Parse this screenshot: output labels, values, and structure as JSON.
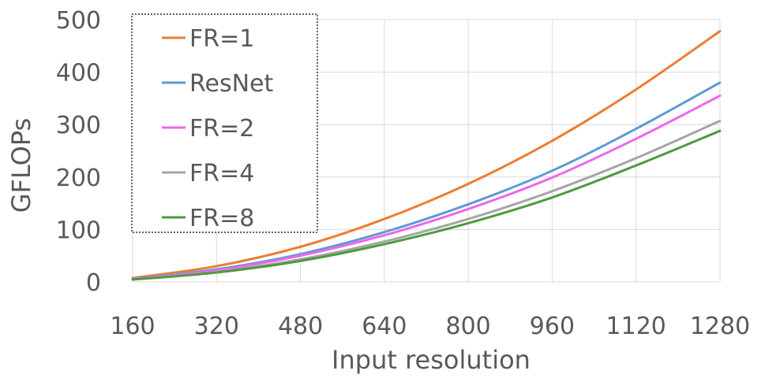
{
  "chart_data": {
    "type": "line",
    "title": "",
    "xlabel": "Input resolution",
    "ylabel": "GFLOPs",
    "x": [
      160,
      320,
      480,
      640,
      800,
      960,
      1120,
      1280
    ],
    "xticks": [
      "160",
      "320",
      "480",
      "640",
      "800",
      "960",
      "1120",
      "1280"
    ],
    "ylim": [
      0,
      500
    ],
    "yticks": [
      "0",
      "100",
      "200",
      "300",
      "400",
      "500"
    ],
    "grid": true,
    "legend_position": "top-left",
    "series": [
      {
        "name": "FR=1",
        "color": "#ED7D31",
        "values": [
          7.5,
          30,
          67,
          120,
          187,
          269,
          367,
          478
        ]
      },
      {
        "name": "ResNet",
        "color": "#5B9BD5",
        "values": [
          6,
          24,
          53,
          95,
          148,
          212,
          292,
          380
        ]
      },
      {
        "name": "FR=2",
        "color": "#EE66EE",
        "values": [
          5.5,
          22,
          50,
          89,
          139,
          199,
          273,
          355
        ]
      },
      {
        "name": "FR=4",
        "color": "#A5A5A5",
        "values": [
          4.8,
          19,
          43,
          77,
          120,
          173,
          236,
          307
        ]
      },
      {
        "name": "FR=8",
        "color": "#4E9A3E",
        "values": [
          4.5,
          18,
          40,
          72,
          112,
          161,
          222,
          288
        ]
      }
    ]
  }
}
